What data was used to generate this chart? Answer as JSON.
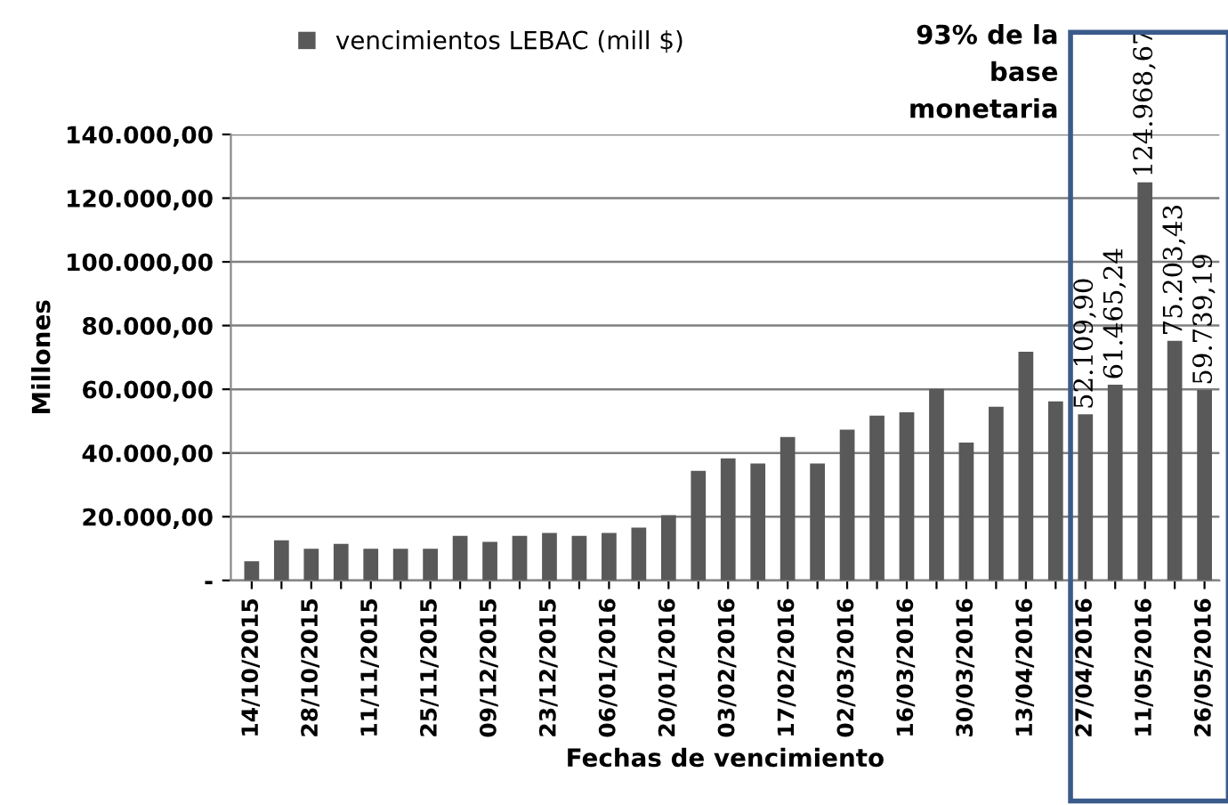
{
  "chart_data": {
    "type": "bar",
    "xlabel": "Fechas de vencimiento",
    "ylabel": "Millones",
    "categories": [
      "14/10/2015",
      null,
      "28/10/2015",
      null,
      "11/11/2015",
      null,
      "25/11/2015",
      null,
      "09/12/2015",
      null,
      "23/12/2015",
      null,
      "06/01/2016",
      null,
      "20/01/2016",
      null,
      "03/02/2016",
      null,
      "17/02/2016",
      null,
      "02/03/2016",
      null,
      "16/03/2016",
      null,
      "30/03/2016",
      null,
      "13/04/2016",
      null,
      "27/04/2016",
      null,
      "11/05/2016",
      null,
      "26/05/2016"
    ],
    "series": [
      {
        "name": "vencimientos LEBAC (mill $)",
        "color": "#595959",
        "values": [
          6000,
          12600,
          9900,
          11500,
          9900,
          9900,
          9900,
          14000,
          12100,
          14000,
          14900,
          14000,
          14900,
          16600,
          20500,
          34400,
          38300,
          36700,
          45000,
          36700,
          47300,
          51700,
          52800,
          60100,
          43300,
          54500,
          71800,
          56200,
          52109.9,
          61465.24,
          124968.67,
          75203.43,
          59739.19
        ],
        "value_labels": [
          null,
          null,
          null,
          null,
          null,
          null,
          null,
          null,
          null,
          null,
          null,
          null,
          null,
          null,
          null,
          null,
          null,
          null,
          null,
          null,
          null,
          null,
          null,
          null,
          null,
          null,
          null,
          null,
          "52.109,90",
          "61.465,24",
          "124.968,67",
          "75.203,43",
          "59.739,19"
        ]
      }
    ],
    "ylim": [
      0,
      140000
    ],
    "yticks": [
      {
        "value": 0,
        "label": "-"
      },
      {
        "value": 20000,
        "label": "20.000,00"
      },
      {
        "value": 40000,
        "label": "40.000,00"
      },
      {
        "value": 60000,
        "label": "60.000,00"
      },
      {
        "value": 80000,
        "label": "80.000,00"
      },
      {
        "value": 100000,
        "label": "100.000,00"
      },
      {
        "value": 120000,
        "label": "120.000,00"
      },
      {
        "value": 140000,
        "label": "140.000,00"
      }
    ],
    "grid": "y",
    "legend": "top",
    "annotations": [
      "93% de la\nbase\nmonetaria"
    ]
  }
}
